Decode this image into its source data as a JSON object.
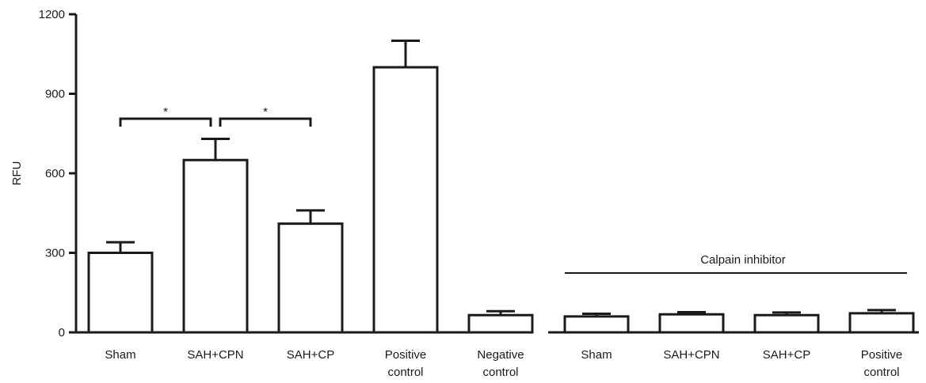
{
  "chart_data": {
    "type": "bar",
    "title": "",
    "xlabel": "",
    "ylabel": "RFU",
    "ylim": [
      0,
      1200
    ],
    "yticks": [
      "0",
      "300",
      "600",
      "900",
      "1200"
    ],
    "grid": false,
    "categories": [
      [
        "Sham"
      ],
      [
        "SAH+CPN"
      ],
      [
        "SAH+CP"
      ],
      [
        "Positive",
        "control"
      ],
      [
        "Negative",
        "control"
      ],
      [
        "Sham"
      ],
      [
        "SAH+CPN"
      ],
      [
        "SAH+CP"
      ],
      [
        "Positive",
        "control"
      ]
    ],
    "values": [
      300,
      650,
      410,
      1000,
      65,
      60,
      68,
      65,
      72
    ],
    "errors": [
      40,
      80,
      50,
      100,
      15,
      10,
      8,
      10,
      12
    ],
    "group_annotation": {
      "text": "Calpain inhibitor",
      "from_index": 5,
      "to_index": 8
    },
    "significance": [
      {
        "from_index": 0,
        "to_index": 1,
        "label": "*"
      },
      {
        "from_index": 1,
        "to_index": 2,
        "label": "*"
      }
    ]
  }
}
